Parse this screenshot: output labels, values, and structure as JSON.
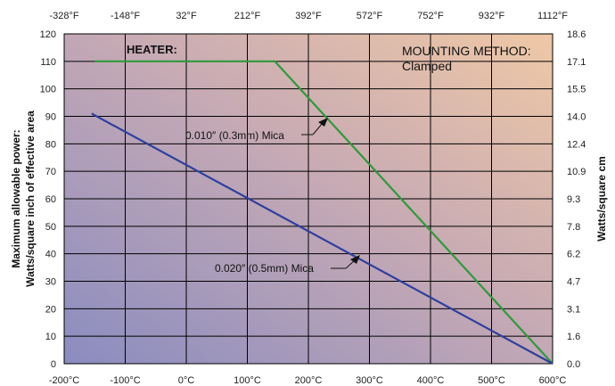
{
  "chart_data": {
    "type": "line",
    "title": "",
    "x_bottom": {
      "unit": "°C",
      "ticks": [
        "-200°C",
        "-100°C",
        "0°C",
        "100°C",
        "200°C",
        "300°C",
        "400°C",
        "500°C",
        "600°C"
      ],
      "range": [
        -200,
        600
      ]
    },
    "x_top": {
      "unit": "°F",
      "ticks": [
        "-328°F",
        "-148°F",
        "32°F",
        "212°F",
        "392°F",
        "572°F",
        "752°F",
        "932°F",
        "1112°F"
      ]
    },
    "y_left": {
      "label_line1": "Maximum allowable power:",
      "label_line2": "Watts/square inch of effective area",
      "ticks": [
        "0",
        "10",
        "20",
        "30",
        "40",
        "50",
        "60",
        "70",
        "80",
        "90",
        "100",
        "110",
        "120"
      ],
      "range": [
        0,
        120
      ]
    },
    "y_right": {
      "label": "Watts/square cm",
      "ticks": [
        "0.0",
        "1.6",
        "3.1",
        "4.7",
        "6.2",
        "7.8",
        "9.3",
        "10.9",
        "12.4",
        "14.0",
        "15.5",
        "17.1",
        "18.6"
      ]
    },
    "grid": true,
    "series": [
      {
        "name": "0.010″ (0.3mm) Mica",
        "color": "#2e9a3c",
        "x": [
          -150,
          145,
          600
        ],
        "y": [
          110,
          110,
          0
        ]
      },
      {
        "name": "0.020″ (0.5mm) Mica",
        "color": "#2f3f9e",
        "x": [
          -155,
          600
        ],
        "y": [
          91,
          0
        ]
      }
    ],
    "annotations": {
      "heater": "HEATER:",
      "mounting_line1": "MOUNTING METHOD:",
      "mounting_line2": "Clamped"
    }
  }
}
